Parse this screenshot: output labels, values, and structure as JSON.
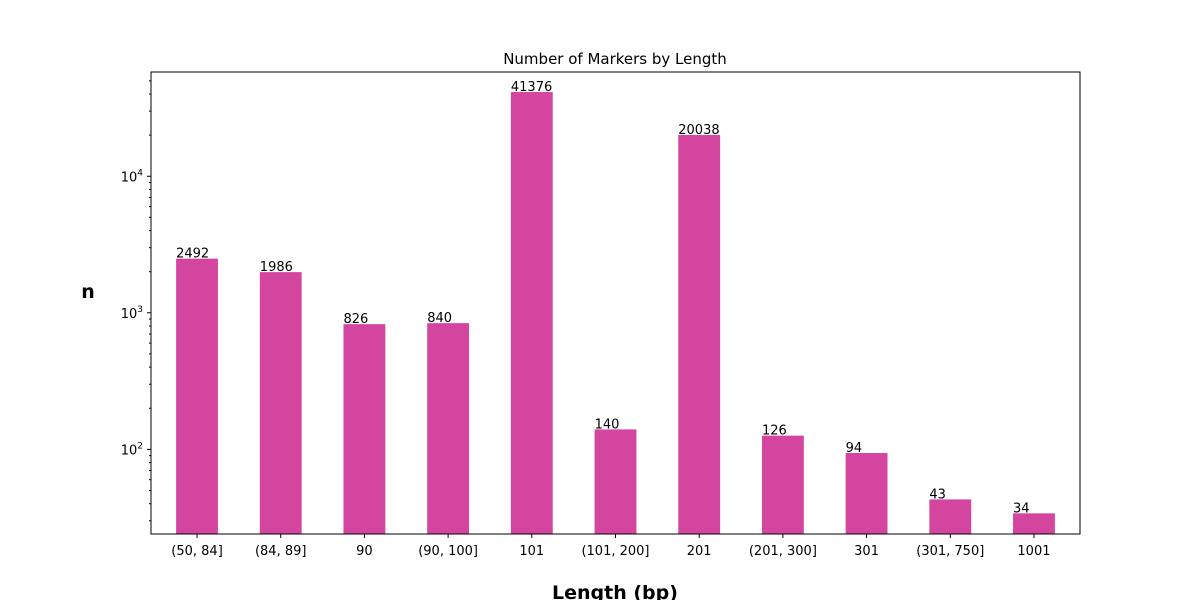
{
  "chart_data": {
    "type": "bar",
    "title": "Number of Markers by Length",
    "xlabel": "Length (bp)",
    "ylabel": "n",
    "yscale": "log",
    "ylim": [
      24,
      58000
    ],
    "grid": false,
    "legend": "none",
    "bar_color": "#d3459f",
    "categories": [
      "(50, 84]",
      "(84, 89]",
      "90",
      "(90, 100]",
      "101",
      "(101, 200]",
      "201",
      "(201, 300]",
      "301",
      "(301, 750]",
      "1001"
    ],
    "values": [
      2492,
      1986,
      826,
      840,
      41376,
      140,
      20038,
      126,
      94,
      43,
      34
    ],
    "data_labels": [
      "2492",
      "1986",
      "826",
      "840",
      "41376",
      "140",
      "20038",
      "126",
      "94",
      "43",
      "34"
    ],
    "y_ticks": [
      {
        "value": 100,
        "base": "10",
        "exp": "2"
      },
      {
        "value": 1000,
        "base": "10",
        "exp": "3"
      },
      {
        "value": 10000,
        "base": "10",
        "exp": "4"
      }
    ]
  }
}
